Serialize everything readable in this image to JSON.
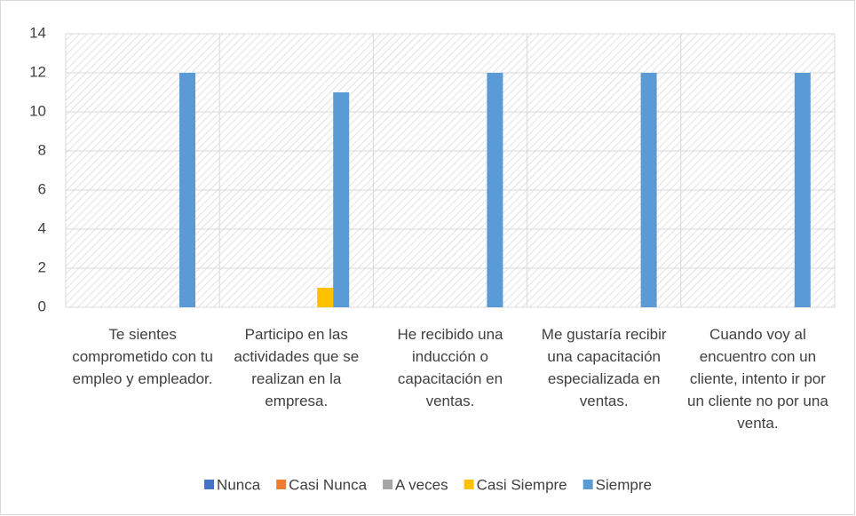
{
  "chart_data": {
    "type": "bar",
    "categories": [
      "Te sientes comprometido con tu empleo y empleador.",
      "Participo en las actividades que se realizan en la empresa.",
      "He recibido una inducción o capacitación en ventas.",
      "Me gustaría recibir una capacitación especializada en ventas.",
      "Cuando voy al encuentro con un cliente, intento ir por un cliente no por una venta."
    ],
    "series": [
      {
        "name": "Nunca",
        "color": "#4472c4",
        "values": [
          0,
          0,
          0,
          0,
          0
        ]
      },
      {
        "name": "Casi Nunca",
        "color": "#ed7d31",
        "values": [
          0,
          0,
          0,
          0,
          0
        ]
      },
      {
        "name": "A veces",
        "color": "#a5a5a5",
        "values": [
          0,
          0,
          0,
          0,
          0
        ]
      },
      {
        "name": "Casi Siempre",
        "color": "#ffc000",
        "values": [
          0,
          1,
          0,
          0,
          0
        ]
      },
      {
        "name": "Siempre",
        "color": "#5b9bd5",
        "values": [
          12,
          11,
          12,
          12,
          12
        ]
      }
    ],
    "ylim": [
      0,
      14
    ],
    "yticks": [
      0,
      2,
      4,
      6,
      8,
      10,
      12,
      14
    ],
    "grid": true,
    "legend": "bottom"
  }
}
